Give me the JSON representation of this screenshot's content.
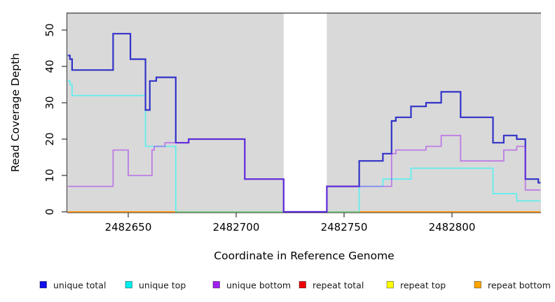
{
  "chart_data": {
    "type": "line",
    "step": true,
    "title": "",
    "xlabel": "Coordinate in Reference Genome",
    "ylabel": "Read Coverage Depth",
    "x_ticks": [
      2482650,
      2482700,
      2482750,
      2482800
    ],
    "y_ticks": [
      0,
      10,
      20,
      30,
      40,
      50
    ],
    "xlim": [
      2482622,
      2482841
    ],
    "ylim": [
      0,
      55
    ],
    "grid": false,
    "plot_background": "#D9D9D9",
    "no_data_gap": {
      "x_start": 2482722,
      "x_end": 2482742
    },
    "legend_position": "bottom",
    "series": [
      {
        "name": "repeat bottom",
        "color": "#FF9820",
        "opacity": 1,
        "width": 2,
        "segments": [
          {
            "points": [
              [
                2482622,
                0
              ]
            ],
            "end": 2482722
          },
          {
            "points": [
              [
                2482742,
                0
              ]
            ],
            "end": 2482841
          }
        ]
      },
      {
        "name": "unique top",
        "color": "#00FFFF",
        "opacity": 0.55,
        "width": 1.8,
        "segments": [
          {
            "points": [
              [
                2482622,
                36
              ],
              [
                2482623,
                35
              ],
              [
                2482624,
                32
              ],
              [
                2482658,
                18
              ],
              [
                2482672,
                0
              ]
            ],
            "end": 2482722
          },
          {
            "points": [
              [
                2482742,
                0
              ],
              [
                2482757,
                7
              ],
              [
                2482768,
                9
              ],
              [
                2482781,
                12
              ],
              [
                2482819,
                5
              ],
              [
                2482830,
                3
              ]
            ],
            "end": 2482841
          }
        ]
      },
      {
        "name": "unique total",
        "color": "#3232C8",
        "opacity": 1,
        "width": 2.2,
        "segments": [
          {
            "points": [
              [
                2482622,
                43
              ],
              [
                2482623,
                42
              ],
              [
                2482624,
                39
              ],
              [
                2482643,
                49
              ],
              [
                2482651,
                42
              ],
              [
                2482658,
                28
              ],
              [
                2482660,
                36
              ],
              [
                2482663,
                37
              ],
              [
                2482672,
                19
              ],
              [
                2482678,
                20
              ],
              [
                2482704,
                9
              ],
              [
                2482722,
                0
              ],
              [
                2482742,
                7
              ],
              [
                2482757,
                14
              ],
              [
                2482768,
                16
              ],
              [
                2482772,
                25
              ],
              [
                2482774,
                26
              ],
              [
                2482781,
                29
              ],
              [
                2482788,
                30
              ],
              [
                2482795,
                33
              ],
              [
                2482804,
                26
              ],
              [
                2482819,
                19
              ],
              [
                2482824,
                21
              ],
              [
                2482830,
                20
              ],
              [
                2482834,
                9
              ],
              [
                2482840,
                8
              ]
            ],
            "end": 2482841
          }
        ]
      },
      {
        "name": "unique bottom",
        "color": "#A020F0",
        "opacity": 0.5,
        "width": 1.8,
        "segments": [
          {
            "points": [
              [
                2482622,
                7
              ],
              [
                2482643,
                17
              ],
              [
                2482650,
                10
              ],
              [
                2482661,
                17
              ],
              [
                2482662,
                18
              ],
              [
                2482667,
                19
              ],
              [
                2482672,
                19
              ],
              [
                2482678,
                20
              ],
              [
                2482704,
                9
              ],
              [
                2482722,
                0
              ],
              [
                2482742,
                7
              ],
              [
                2482772,
                16
              ],
              [
                2482774,
                17
              ],
              [
                2482788,
                18
              ],
              [
                2482795,
                21
              ],
              [
                2482804,
                14
              ],
              [
                2482824,
                17
              ],
              [
                2482830,
                18
              ],
              [
                2482834,
                6
              ]
            ],
            "end": 2482841
          }
        ]
      }
    ],
    "legend": [
      {
        "label": "unique total",
        "color": "#0F0FEF"
      },
      {
        "label": "unique top",
        "color": "#00EEEE"
      },
      {
        "label": "unique bottom",
        "color": "#A020F0"
      },
      {
        "label": "repeat total",
        "color": "#EE0000"
      },
      {
        "label": "repeat top",
        "color": "#FFFF00"
      },
      {
        "label": "repeat bottom",
        "color": "#FFA500"
      }
    ]
  }
}
